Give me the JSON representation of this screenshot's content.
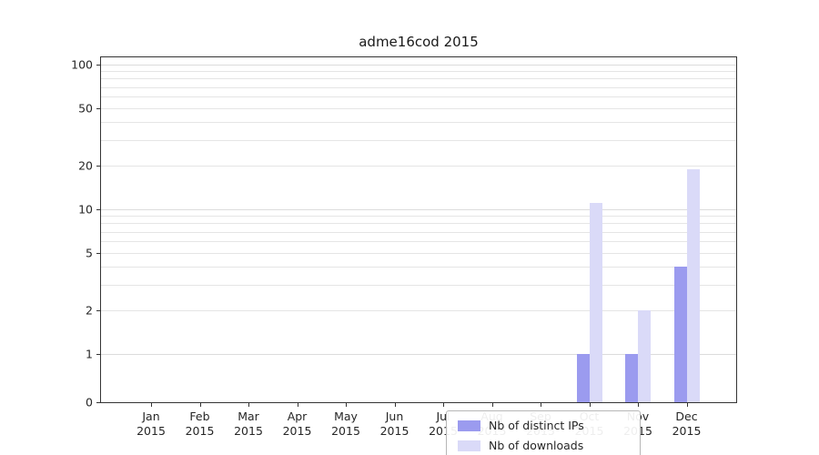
{
  "title": "adme16cod 2015",
  "chart_data": {
    "type": "bar",
    "title": "adme16cod 2015",
    "categories": [
      "Jan 2015",
      "Feb 2015",
      "Mar 2015",
      "Apr 2015",
      "May 2015",
      "Jun 2015",
      "Jul 2015",
      "Aug 2015",
      "Sep 2015",
      "Oct 2015",
      "Nov 2015",
      "Dec 2015"
    ],
    "x_tick_months": [
      "Jan",
      "Feb",
      "Mar",
      "Apr",
      "May",
      "Jun",
      "Jul",
      "Aug",
      "Sep",
      "Oct",
      "Nov",
      "Dec"
    ],
    "x_tick_year": "2015",
    "series": [
      {
        "name": "Nb of distinct IPs",
        "color": "#9b9bef",
        "values": [
          0,
          0,
          0,
          0,
          0,
          0,
          0,
          0,
          0,
          1,
          1,
          4
        ]
      },
      {
        "name": "Nb of downloads",
        "color": "#dadaf8",
        "values": [
          0,
          0,
          0,
          0,
          0,
          0,
          0,
          0,
          0,
          11,
          2,
          19
        ]
      }
    ],
    "yscale": "symlog",
    "ylim": [
      0,
      114
    ],
    "yticks": [
      0,
      1,
      2,
      5,
      10,
      20,
      50,
      100
    ],
    "ytick_labels": [
      "0",
      "1",
      "2",
      "5",
      "10",
      "20",
      "50",
      "100"
    ],
    "minor_gridlines": [
      1,
      2,
      3,
      4,
      5,
      6,
      7,
      8,
      9,
      10,
      20,
      30,
      40,
      50,
      60,
      70,
      80,
      90,
      100
    ],
    "major_gridline_values": [
      1,
      10,
      100
    ],
    "grid": true,
    "legend_position": "lower center inside"
  },
  "legend": {
    "items": [
      {
        "label": "Nb of distinct IPs"
      },
      {
        "label": "Nb of downloads"
      }
    ]
  }
}
